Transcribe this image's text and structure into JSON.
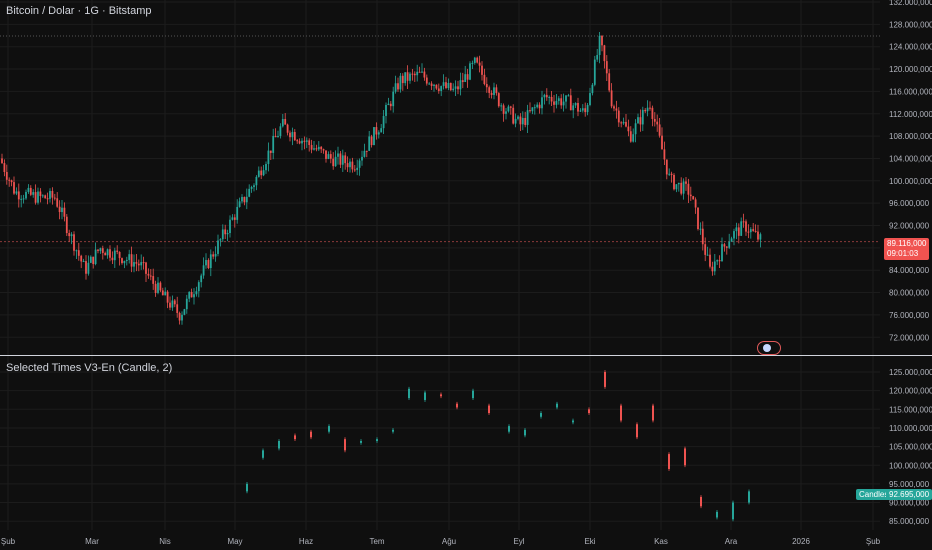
{
  "main": {
    "title": "Bitcoin / Dolar · 1G · Bitstamp",
    "price_axis": [
      "132.000,000",
      "128.000,000",
      "124.000,000",
      "120.000,000",
      "116.000,000",
      "112.000,000",
      "108.000,000",
      "104.000,000",
      "100.000,000",
      "96.000,000",
      "92.000,000",
      "88.000,000",
      "84.000,000",
      "80.000,000",
      "76.000,000",
      "72.000,000"
    ],
    "last_price": "89.116,000",
    "countdown": "09:01:03",
    "last_price_color": "#f05350"
  },
  "indicator": {
    "title": "Selected Times V3-En (Candle, 2)",
    "price_axis": [
      "125.000,000",
      "120.000,000",
      "115.000,000",
      "110.000,000",
      "105.000,000",
      "100.000,000",
      "95.000,000",
      "90.000,000",
      "85.000,000"
    ],
    "badge_label": "Candles",
    "badge_value": "92.695,000",
    "badge_color": "#26a69a"
  },
  "time_axis": [
    "Şub",
    "Mar",
    "Nis",
    "May",
    "Haz",
    "Tem",
    "Ağu",
    "Eyl",
    "Eki",
    "Kas",
    "Ara",
    "2026",
    "Şub"
  ],
  "colors": {
    "up": "#26a69a",
    "down": "#ef5350",
    "bg": "#0f0f0f",
    "grid": "#1c1c1c"
  },
  "chart_data": [
    {
      "type": "candlestick",
      "title": "Bitcoin / Dolar · 1G · Bitstamp",
      "ylim": [
        70000,
        132000
      ],
      "series_close_trend": [
        {
          "x": "Şub",
          "y": 101000
        },
        {
          "x": "Mar",
          "y": 86000
        },
        {
          "x": "Nis",
          "y": 78000
        },
        {
          "x": "May",
          "y": 94000
        },
        {
          "x": "Haz",
          "y": 106000
        },
        {
          "x": "Tem",
          "y": 109000
        },
        {
          "x": "Ağu",
          "y": 116000
        },
        {
          "x": "Eyl",
          "y": 109000
        },
        {
          "x": "Eki",
          "y": 124000
        },
        {
          "x": "Kas",
          "y": 110000
        },
        {
          "x": "Ara",
          "y": 90000
        },
        {
          "x": "last",
          "y": 89116
        }
      ]
    },
    {
      "type": "candlestick",
      "title": "Selected Times V3-En (Candle, 2)",
      "ylim": [
        82000,
        128000
      ],
      "series_close_trend": [
        {
          "x": "May",
          "y": 93000
        },
        {
          "x": "Haz",
          "y": 110000
        },
        {
          "x": "Tem",
          "y": 119000
        },
        {
          "x": "Ağu",
          "y": 119000
        },
        {
          "x": "Eyl",
          "y": 111000
        },
        {
          "x": "Eki",
          "y": 123000
        },
        {
          "x": "Kas",
          "y": 104000
        },
        {
          "x": "Ara",
          "y": 92695
        }
      ]
    }
  ]
}
